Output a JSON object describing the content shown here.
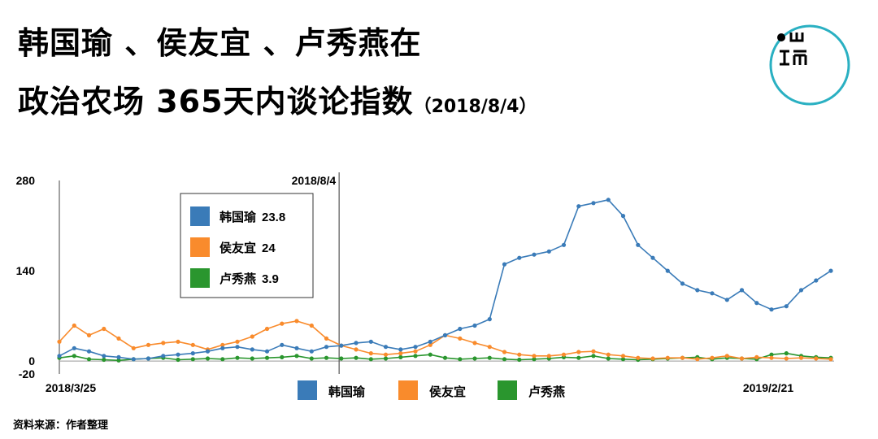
{
  "title": {
    "line1": "韩国瑜 、侯友宜 、卢秀燕在",
    "line2": "政治农场 365天内谈论指数",
    "date": "（2018/8/4）"
  },
  "source": "资料来源：作者整理",
  "colors": {
    "blue": "#3a7bb8",
    "orange": "#f98b2c",
    "green": "#2a962e",
    "logo_ring": "#2ab0c2"
  },
  "chart_data": {
    "type": "line",
    "x_start_label": "2018/3/25",
    "x_end_label": "2019/2/21",
    "x_range": [
      "2018-03-25",
      "2019-03-24"
    ],
    "ylim": [
      -20,
      280
    ],
    "yticks": [
      -20,
      0,
      140,
      280
    ],
    "marker": {
      "date": "2018-08-04",
      "label": "2018/8/4"
    },
    "tooltip": [
      {
        "name": "韩国瑜",
        "value": "23.8"
      },
      {
        "name": "侯友宜",
        "value": "24"
      },
      {
        "name": "卢秀燕",
        "value": "3.9"
      }
    ],
    "legend_position": "bottom-center",
    "x": [
      "2018-03-25",
      "2018-04-01",
      "2018-04-08",
      "2018-04-15",
      "2018-04-22",
      "2018-04-29",
      "2018-05-06",
      "2018-05-13",
      "2018-05-20",
      "2018-05-27",
      "2018-06-03",
      "2018-06-10",
      "2018-06-17",
      "2018-06-24",
      "2018-07-01",
      "2018-07-08",
      "2018-07-15",
      "2018-07-22",
      "2018-07-29",
      "2018-08-05",
      "2018-08-12",
      "2018-08-19",
      "2018-08-26",
      "2018-09-02",
      "2018-09-09",
      "2018-09-16",
      "2018-09-23",
      "2018-09-30",
      "2018-10-07",
      "2018-10-14",
      "2018-10-21",
      "2018-10-28",
      "2018-11-04",
      "2018-11-11",
      "2018-11-18",
      "2018-11-25",
      "2018-12-02",
      "2018-12-09",
      "2018-12-16",
      "2018-12-23",
      "2018-12-30",
      "2019-01-06",
      "2019-01-13",
      "2019-01-20",
      "2019-01-27",
      "2019-02-03",
      "2019-02-10",
      "2019-02-17",
      "2019-02-24",
      "2019-03-03",
      "2019-03-10",
      "2019-03-17",
      "2019-03-24"
    ],
    "series": [
      {
        "name": "韩国瑜",
        "color": "#3a7bb8",
        "values": [
          8,
          20,
          15,
          8,
          6,
          3,
          4,
          8,
          10,
          12,
          15,
          20,
          22,
          18,
          15,
          25,
          20,
          15,
          22,
          24,
          28,
          30,
          22,
          18,
          22,
          30,
          40,
          50,
          55,
          65,
          150,
          160,
          165,
          170,
          180,
          240,
          245,
          250,
          225,
          180,
          160,
          140,
          120,
          110,
          105,
          95,
          110,
          90,
          80,
          85,
          110,
          125,
          140
        ]
      },
      {
        "name": "侯友宜",
        "color": "#f98b2c",
        "values": [
          30,
          55,
          40,
          50,
          35,
          20,
          25,
          28,
          30,
          25,
          18,
          25,
          30,
          38,
          50,
          58,
          62,
          55,
          35,
          24,
          18,
          12,
          10,
          12,
          15,
          25,
          40,
          35,
          28,
          22,
          14,
          10,
          8,
          8,
          10,
          14,
          15,
          10,
          8,
          5,
          4,
          5,
          5,
          3,
          5,
          8,
          4,
          6,
          5,
          4,
          5,
          4,
          3
        ]
      },
      {
        "name": "卢秀燕",
        "color": "#2a962e",
        "values": [
          5,
          8,
          3,
          2,
          1,
          3,
          4,
          5,
          2,
          3,
          4,
          3,
          5,
          4,
          5,
          6,
          8,
          4,
          5,
          3.9,
          5,
          3,
          4,
          6,
          8,
          10,
          5,
          3,
          4,
          5,
          3,
          2,
          3,
          4,
          6,
          5,
          8,
          4,
          3,
          2,
          3,
          4,
          5,
          6,
          3,
          5,
          4,
          3,
          10,
          12,
          8,
          6,
          5
        ]
      }
    ]
  }
}
